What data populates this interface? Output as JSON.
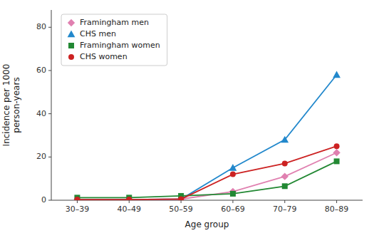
{
  "chart_data": {
    "type": "line",
    "categories": [
      "30–39",
      "40–49",
      "50–59",
      "60–69",
      "70–79",
      "80–89"
    ],
    "series": [
      {
        "name": "Framingham men",
        "color": "#e080b0",
        "marker": "diamond",
        "values": [
          0.3,
          0.3,
          0.5,
          4.0,
          11.0,
          22.0
        ]
      },
      {
        "name": "CHS men",
        "color": "#2288cc",
        "marker": "triangle",
        "values": [
          0.3,
          0.3,
          0.5,
          15.0,
          28.0,
          58.0
        ]
      },
      {
        "name": "Framingham women",
        "color": "#228833",
        "marker": "square",
        "values": [
          1.2,
          1.2,
          2.0,
          3.0,
          6.5,
          18.0
        ]
      },
      {
        "name": "CHS women",
        "color": "#cc2222",
        "marker": "circle",
        "values": [
          0.3,
          0.3,
          0.5,
          12.0,
          17.0,
          25.0
        ]
      }
    ],
    "x_label": "Age group",
    "y_label": "Incidence per 1000\nperson-years",
    "ylim": [
      0,
      88
    ],
    "yticks": [
      0,
      20,
      40,
      60,
      80
    ],
    "grid": false,
    "legend": "upper left"
  }
}
